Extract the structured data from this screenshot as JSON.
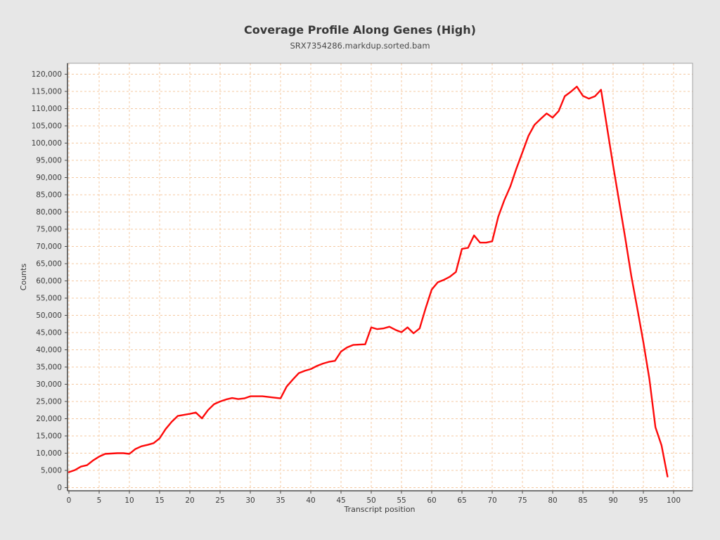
{
  "title": "Coverage Profile Along Genes (High)",
  "subtitle": "SRX7354286.markdup.sorted.bam",
  "chart_data": {
    "type": "line",
    "title": "Coverage Profile Along Genes (High)",
    "subtitle": "SRX7354286.markdup.sorted.bam",
    "xlabel": "Transcript position",
    "ylabel": "Counts",
    "series_name": "Coverage",
    "xlim": [
      0,
      100
    ],
    "ylim": [
      0,
      120000
    ],
    "x_ticks": [
      0,
      5,
      10,
      15,
      20,
      25,
      30,
      35,
      40,
      45,
      50,
      55,
      60,
      65,
      70,
      75,
      80,
      85,
      90,
      95,
      100
    ],
    "y_ticks": [
      0,
      5000,
      10000,
      15000,
      20000,
      25000,
      30000,
      35000,
      40000,
      45000,
      50000,
      55000,
      60000,
      65000,
      70000,
      75000,
      80000,
      85000,
      90000,
      95000,
      100000,
      105000,
      110000,
      115000,
      120000
    ],
    "grid": true,
    "legend": "none",
    "line_color": "#fe0a0a",
    "grid_color": "#f4c8a0",
    "axis_color": "#4d4d4d",
    "plot_border_color": "#a0a0a0",
    "background": "#e7e7e7",
    "plot_background": "#ffffff",
    "x": [
      0,
      1,
      2,
      3,
      4,
      5,
      6,
      7,
      8,
      9,
      10,
      11,
      12,
      13,
      14,
      15,
      16,
      17,
      18,
      19,
      20,
      21,
      22,
      23,
      24,
      25,
      26,
      27,
      28,
      29,
      30,
      31,
      32,
      33,
      34,
      35,
      36,
      37,
      38,
      39,
      40,
      41,
      42,
      43,
      44,
      45,
      46,
      47,
      48,
      49,
      50,
      51,
      52,
      53,
      54,
      55,
      56,
      57,
      58,
      59,
      60,
      61,
      62,
      63,
      64,
      65,
      66,
      67,
      68,
      69,
      70,
      71,
      72,
      73,
      74,
      75,
      76,
      77,
      78,
      79,
      80,
      81,
      82,
      83,
      84,
      85,
      86,
      87,
      88,
      89,
      90,
      91,
      92,
      93,
      94,
      95,
      96,
      97,
      98,
      99
    ],
    "values": [
      4500,
      5100,
      6100,
      6500,
      7900,
      9000,
      9800,
      9900,
      10000,
      10000,
      9800,
      11200,
      12000,
      12400,
      12900,
      14300,
      17000,
      19100,
      20800,
      21100,
      21400,
      21800,
      20100,
      22500,
      24200,
      25000,
      25600,
      26000,
      25700,
      25900,
      26500,
      26500,
      26500,
      26300,
      26100,
      25900,
      29300,
      31300,
      33200,
      33900,
      34400,
      35300,
      36000,
      36500,
      36800,
      39500,
      40700,
      41400,
      41500,
      41600,
      46500,
      46000,
      46200,
      46700,
      45800,
      45100,
      46500,
      44800,
      46200,
      52100,
      57500,
      59600,
      60300,
      61200,
      62600,
      69300,
      69600,
      73200,
      71100,
      71100,
      71500,
      78600,
      83400,
      87400,
      92600,
      97300,
      102100,
      105300,
      107000,
      108600,
      107400,
      109300,
      113600,
      114900,
      116400,
      113700,
      112900,
      113600,
      115500,
      104500,
      93500,
      83000,
      72500,
      61500,
      52000,
      42200,
      31500,
      17500,
      12300,
      3200
    ]
  }
}
